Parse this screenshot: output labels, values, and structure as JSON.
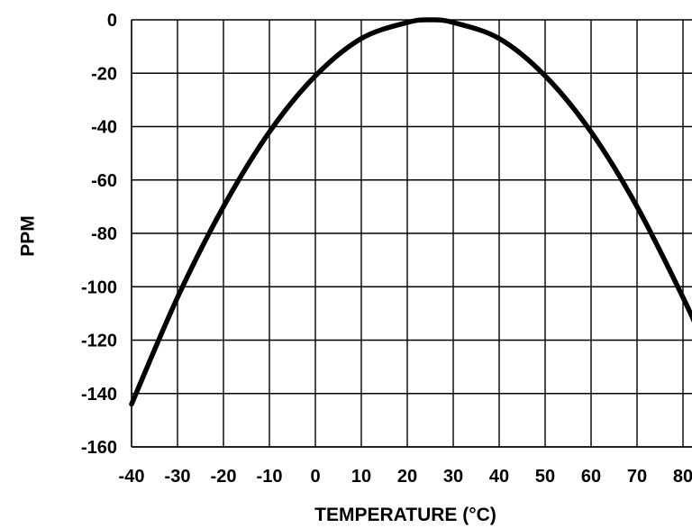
{
  "chart_data": {
    "type": "line",
    "title": "",
    "xlabel": "TEMPERATURE (°C)",
    "ylabel": "PPM",
    "xlim": [
      -40,
      85
    ],
    "ylim": [
      -160,
      0
    ],
    "xticks": [
      -40,
      -30,
      -20,
      -10,
      0,
      10,
      20,
      30,
      40,
      50,
      60,
      70,
      80
    ],
    "yticks": [
      0,
      -20,
      -40,
      -60,
      -80,
      -100,
      -120,
      -140,
      -160
    ],
    "grid": true,
    "colors": {
      "line": "#000000",
      "grid": "#000000",
      "background": "#ffffff"
    },
    "series": [
      {
        "x": [
          -40,
          -30,
          -20,
          -10,
          0,
          10,
          20,
          25,
          30,
          40,
          50,
          60,
          70,
          80,
          85
        ],
        "y": [
          -144,
          -104,
          -70,
          -42,
          -21,
          -7,
          -1,
          0,
          -1,
          -7,
          -21,
          -42,
          -70,
          -104,
          -123
        ]
      }
    ]
  }
}
